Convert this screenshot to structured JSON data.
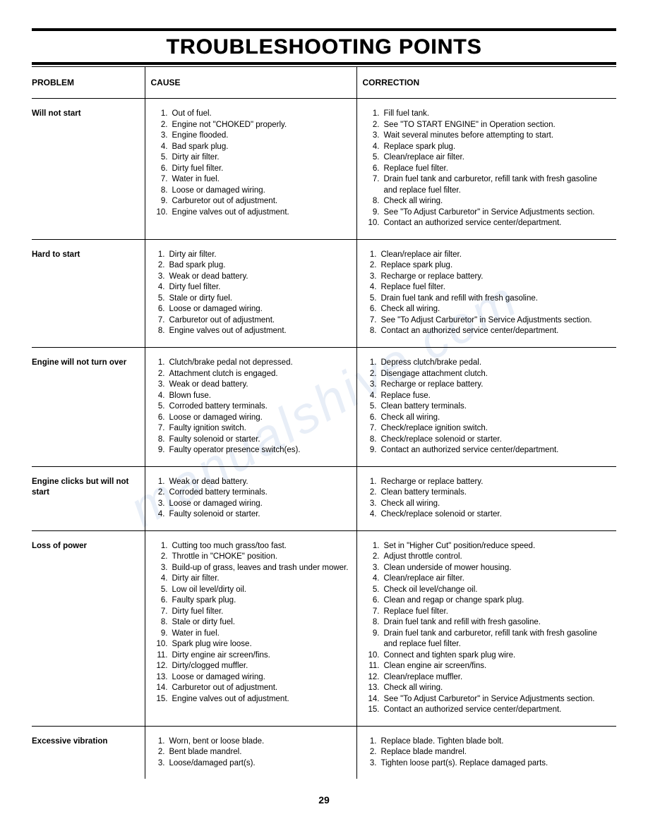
{
  "title": "TROUBLESHOOTING POINTS",
  "columns": {
    "problem": "PROBLEM",
    "cause": "CAUSE",
    "correction": "CORRECTION"
  },
  "page_number": "29",
  "watermark": "manualshive.com",
  "rows": [
    {
      "problem": "Will not start",
      "causes": [
        "Out of fuel.",
        "Engine not \"CHOKED\" properly.",
        "Engine flooded.",
        "Bad spark plug.",
        "Dirty air filter.",
        "Dirty fuel filter.",
        "Water in fuel.",
        "Loose or damaged wiring.",
        "Carburetor out of adjustment.",
        "Engine valves out of adjustment."
      ],
      "corrections": [
        "Fill fuel tank.",
        "See \"TO START ENGINE\" in Operation section.",
        "Wait several minutes before attempting to start.",
        "Replace spark plug.",
        "Clean/replace air filter.",
        "Replace fuel filter.",
        "Drain fuel tank and carburetor, refill tank with fresh gasoline and replace fuel filter.",
        "Check all wiring.",
        "See \"To Adjust Carburetor\" in Service Adjustments section.",
        "Contact an authorized service center/department."
      ]
    },
    {
      "problem": "Hard to start",
      "causes": [
        "Dirty air filter.",
        "Bad spark plug.",
        "Weak or dead battery.",
        "Dirty fuel filter.",
        "Stale or dirty fuel.",
        "Loose or damaged wiring.",
        "Carburetor out of adjustment.",
        "Engine valves out of adjustment."
      ],
      "corrections": [
        "Clean/replace air filter.",
        "Replace spark plug.",
        "Recharge or replace battery.",
        "Replace fuel filter.",
        "Drain fuel tank and refill with fresh gasoline.",
        "Check all wiring.",
        "See \"To Adjust Carburetor\" in Service Adjustments section.",
        "Contact an authorized service center/department."
      ]
    },
    {
      "problem": "Engine will not turn over",
      "causes": [
        "Clutch/brake pedal not depressed.",
        "Attachment clutch is engaged.",
        "Weak or dead battery.",
        "Blown fuse.",
        "Corroded battery terminals.",
        "Loose or damaged wiring.",
        "Faulty ignition switch.",
        "Faulty solenoid or starter.",
        "Faulty operator presence switch(es)."
      ],
      "corrections": [
        "Depress clutch/brake pedal.",
        "Disengage attachment clutch.",
        "Recharge or replace battery.",
        "Replace fuse.",
        "Clean battery terminals.",
        "Check all wiring.",
        "Check/replace ignition switch.",
        "Check/replace solenoid or starter.",
        "Contact an authorized service center/department."
      ]
    },
    {
      "problem": "Engine clicks but will not start",
      "causes": [
        "Weak or dead battery.",
        "Corroded battery terminals.",
        "Loose or damaged wiring.",
        "Faulty solenoid or starter."
      ],
      "corrections": [
        "Recharge or replace battery.",
        "Clean battery terminals.",
        "Check all wiring.",
        "Check/replace solenoid or starter."
      ]
    },
    {
      "problem": "Loss of power",
      "causes": [
        "Cutting too much grass/too fast.",
        "Throttle in \"CHOKE\" position.",
        "Build-up of grass, leaves and trash under mower.",
        "Dirty air filter.",
        "Low oil level/dirty oil.",
        "Faulty spark plug.",
        "Dirty fuel filter.",
        "Stale or dirty fuel.",
        "Water in fuel.",
        "Spark plug wire loose.",
        "Dirty engine air screen/fins.",
        "Dirty/clogged muffler.",
        "Loose or damaged wiring.",
        "Carburetor out of adjustment.",
        "Engine valves out of adjustment."
      ],
      "corrections": [
        "Set in \"Higher Cut\" position/reduce speed.",
        "Adjust throttle control.",
        "Clean underside of mower housing.",
        "Clean/replace air filter.",
        "Check oil level/change oil.",
        "Clean and regap or change spark plug.",
        "Replace fuel filter.",
        "Drain fuel tank and refill with fresh gasoline.",
        "Drain fuel tank and carburetor, refill tank with fresh gasoline and replace fuel filter.",
        "Connect and tighten spark plug wire.",
        "Clean engine air screen/fins.",
        "Clean/replace muffler.",
        "Check all wiring.",
        "See \"To Adjust Carburetor\" in Service Adjustments section.",
        "Contact an authorized service center/department."
      ]
    },
    {
      "problem": "Excessive vibration",
      "causes": [
        "Worn, bent or loose blade.",
        "Bent blade mandrel.",
        "Loose/damaged part(s)."
      ],
      "corrections": [
        "Replace blade.  Tighten blade bolt.",
        "Replace blade mandrel.",
        "Tighten loose part(s).  Replace damaged parts."
      ]
    }
  ]
}
